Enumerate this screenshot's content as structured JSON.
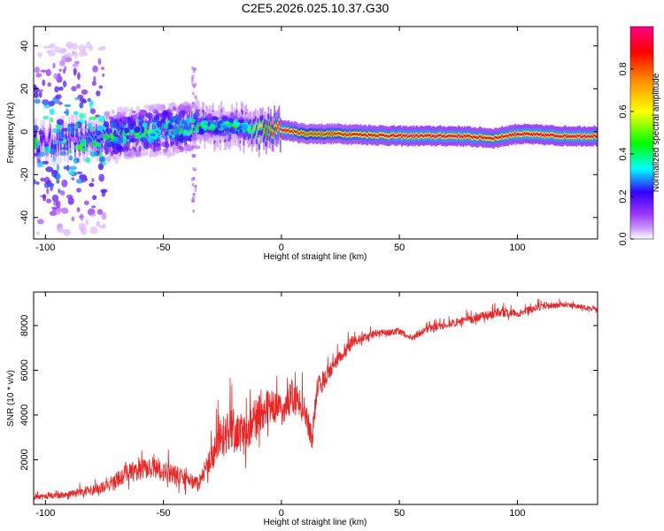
{
  "title": "C2E5.2026.025.10.37.G30",
  "chart_data": [
    {
      "type": "heatmap",
      "xlabel": "Height of straight line (km)",
      "ylabel": "Frequency (Hz)",
      "xlim": [
        -105,
        134
      ],
      "ylim": [
        -50,
        49
      ],
      "xticks": [
        -100,
        -50,
        0,
        50,
        100
      ],
      "yticks": [
        -40,
        -20,
        0,
        20,
        40
      ],
      "colorbar": {
        "label": "Normalized spectral amplitude",
        "range": [
          0,
          1
        ],
        "ticks": [
          "0.0",
          "0.2",
          "0.4",
          "0.6",
          "0.8"
        ],
        "tick_values": [
          0,
          0.2,
          0.4,
          0.6,
          0.8
        ],
        "colormap": [
          "#ffffff",
          "#9933ff",
          "#3300ff",
          "#00ffff",
          "#00ff00",
          "#ffff00",
          "#ff8800",
          "#ff0000",
          "#ff0088"
        ]
      },
      "ridge": [
        {
          "x": -100,
          "freq": -5,
          "amp": 0.25
        },
        {
          "x": -80,
          "freq": -3,
          "amp": 0.35
        },
        {
          "x": -60,
          "freq": 0,
          "amp": 0.4
        },
        {
          "x": -40,
          "freq": 2,
          "amp": 0.45
        },
        {
          "x": -20,
          "freq": 3,
          "amp": 0.45
        },
        {
          "x": -10,
          "freq": 0,
          "amp": 0.6
        },
        {
          "x": 0,
          "freq": 1,
          "amp": 0.95
        },
        {
          "x": 10,
          "freq": -1,
          "amp": 0.8
        },
        {
          "x": 25,
          "freq": -1,
          "amp": 0.85
        },
        {
          "x": 50,
          "freq": -2,
          "amp": 0.95
        },
        {
          "x": 75,
          "freq": -2,
          "amp": 0.95
        },
        {
          "x": 90,
          "freq": -3,
          "amp": 0.9
        },
        {
          "x": 100,
          "freq": -1,
          "amp": 0.95
        },
        {
          "x": 120,
          "freq": -2,
          "amp": 0.95
        },
        {
          "x": 134,
          "freq": -2,
          "amp": 0.95
        }
      ]
    },
    {
      "type": "line",
      "xlabel": "Height of straight line (km)",
      "ylabel": "SNR (10 * v/v)",
      "xlim": [
        -105,
        134
      ],
      "ylim": [
        0,
        9500
      ],
      "xticks": [
        -100,
        -50,
        0,
        50,
        100
      ],
      "yticks": [
        2000,
        4000,
        6000,
        8000
      ],
      "series": [
        {
          "color": "#ee2222",
          "x": [
            -105,
            -95,
            -85,
            -75,
            -65,
            -55,
            -45,
            -35,
            -30,
            -25,
            -20,
            -15,
            -10,
            -5,
            0,
            5,
            10,
            13,
            15,
            20,
            25,
            30,
            40,
            50,
            55,
            60,
            70,
            80,
            90,
            100,
            110,
            120,
            134
          ],
          "values": [
            300,
            350,
            500,
            700,
            1300,
            1500,
            1200,
            800,
            1800,
            2800,
            3000,
            2800,
            3800,
            4200,
            4000,
            4600,
            4000,
            2800,
            5000,
            5800,
            6500,
            7200,
            7600,
            7700,
            7400,
            7700,
            8000,
            8200,
            8500,
            8500,
            8800,
            8900,
            8700
          ],
          "noise": [
            200,
            250,
            350,
            500,
            900,
            900,
            900,
            700,
            1200,
            1800,
            2000,
            1800,
            1800,
            1500,
            1500,
            1500,
            1200,
            1000,
            1200,
            700,
            600,
            500,
            300,
            300,
            300,
            300,
            350,
            400,
            400,
            350,
            300,
            250,
            200
          ]
        }
      ]
    }
  ]
}
